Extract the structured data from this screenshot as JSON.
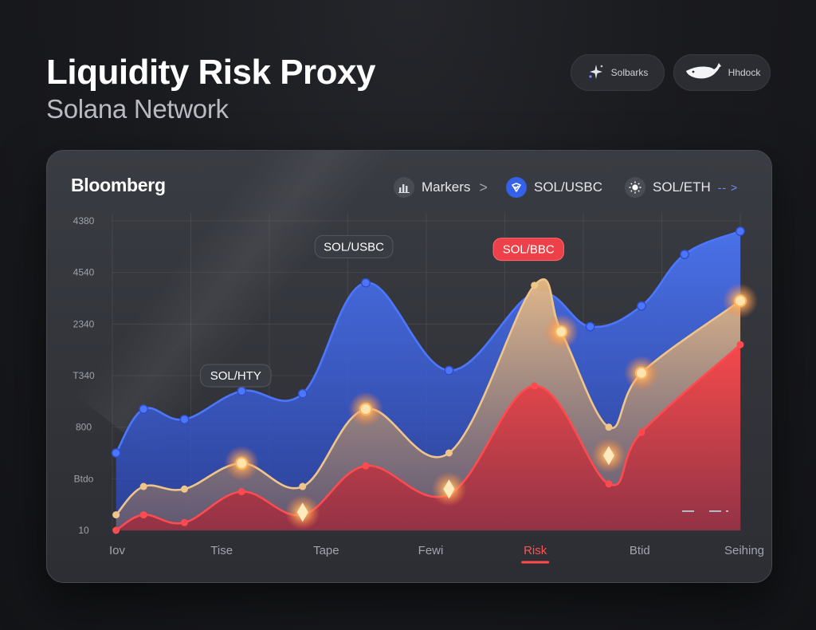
{
  "header": {
    "title": "Liquidity Risk Proxy",
    "subtitle": "Solana Network"
  },
  "top_pills": [
    {
      "label": "Solbarks",
      "icon": "sparkle-icon"
    },
    {
      "label": "Hhdock",
      "icon": "whale-icon"
    }
  ],
  "panel": {
    "brand": "Bloomberg",
    "legend": [
      {
        "label": "Markers",
        "icon": "bar-chart-icon",
        "suffix": ">"
      },
      {
        "label": "SOL/USBC",
        "icon": "shield-check-icon"
      },
      {
        "label": "SOL/ETH",
        "icon": "sun-icon",
        "suffix": "-- >"
      }
    ]
  },
  "colors": {
    "blue": "#3a62e0",
    "gold": "#e8b878",
    "red": "#ef3f45",
    "accent_risk": "#ff4b4b"
  },
  "chart_data": {
    "type": "area",
    "x": [
      "Iov",
      "Tise",
      "Tape",
      "Fewi",
      "Risk",
      "Btid",
      "Seihing"
    ],
    "x_active": "Risk",
    "y_ticks": [
      "10",
      "Btdo",
      "800",
      "T340",
      "2340",
      "4540",
      "4380"
    ],
    "ylim": [
      0,
      6
    ],
    "grid": true,
    "series": [
      {
        "name": "SOL/USBC",
        "color": "#3a62e0",
        "points": [
          [
            0.05,
            1.5
          ],
          [
            0.42,
            2.35
          ],
          [
            0.97,
            2.15
          ],
          [
            1.74,
            2.7
          ],
          [
            2.56,
            2.65
          ],
          [
            3.41,
            4.8
          ],
          [
            4.53,
            3.1
          ],
          [
            5.68,
            4.6
          ],
          [
            6.43,
            3.95
          ],
          [
            7.12,
            4.35
          ],
          [
            7.7,
            5.35
          ],
          [
            8.45,
            5.8
          ]
        ]
      },
      {
        "name": "",
        "color": "#e8b878",
        "points": [
          [
            0.05,
            0.3
          ],
          [
            0.42,
            0.85
          ],
          [
            0.97,
            0.8
          ],
          [
            1.74,
            1.3
          ],
          [
            2.56,
            0.85
          ],
          [
            3.41,
            2.35
          ],
          [
            4.53,
            1.5
          ],
          [
            5.68,
            4.75
          ],
          [
            6.04,
            3.85
          ],
          [
            6.68,
            2.0
          ],
          [
            7.12,
            3.05
          ],
          [
            8.45,
            4.45
          ]
        ]
      },
      {
        "name": "",
        "color": "#ef3f45",
        "points": [
          [
            0.05,
            0.0
          ],
          [
            0.42,
            0.3
          ],
          [
            0.97,
            0.15
          ],
          [
            1.74,
            0.75
          ],
          [
            2.56,
            0.3
          ],
          [
            3.41,
            1.25
          ],
          [
            4.53,
            0.7
          ],
          [
            5.68,
            2.8
          ],
          [
            6.68,
            0.9
          ],
          [
            7.12,
            1.9
          ],
          [
            8.45,
            3.6
          ]
        ]
      }
    ],
    "annotations": [
      {
        "text": "SOL/HTY",
        "x": 1.66,
        "y": 3.0,
        "style": "dark"
      },
      {
        "text": "SOL/USBC",
        "x": 3.25,
        "y": 5.5,
        "style": "dark"
      },
      {
        "text": "SOL/BBC",
        "x": 5.6,
        "y": 5.45,
        "style": "red"
      }
    ],
    "glow_markers": [
      {
        "x": 1.74,
        "y": 1.3,
        "shape": "dot"
      },
      {
        "x": 3.41,
        "y": 2.35,
        "shape": "dot"
      },
      {
        "x": 6.04,
        "y": 3.85,
        "shape": "dot"
      },
      {
        "x": 7.12,
        "y": 3.05,
        "shape": "dot"
      },
      {
        "x": 8.45,
        "y": 4.45,
        "shape": "dot"
      },
      {
        "x": 2.56,
        "y": 0.35,
        "shape": "diamond"
      },
      {
        "x": 4.53,
        "y": 0.8,
        "shape": "diamond"
      },
      {
        "x": 6.68,
        "y": 1.45,
        "shape": "diamond"
      }
    ],
    "legend_position": "top-right"
  }
}
